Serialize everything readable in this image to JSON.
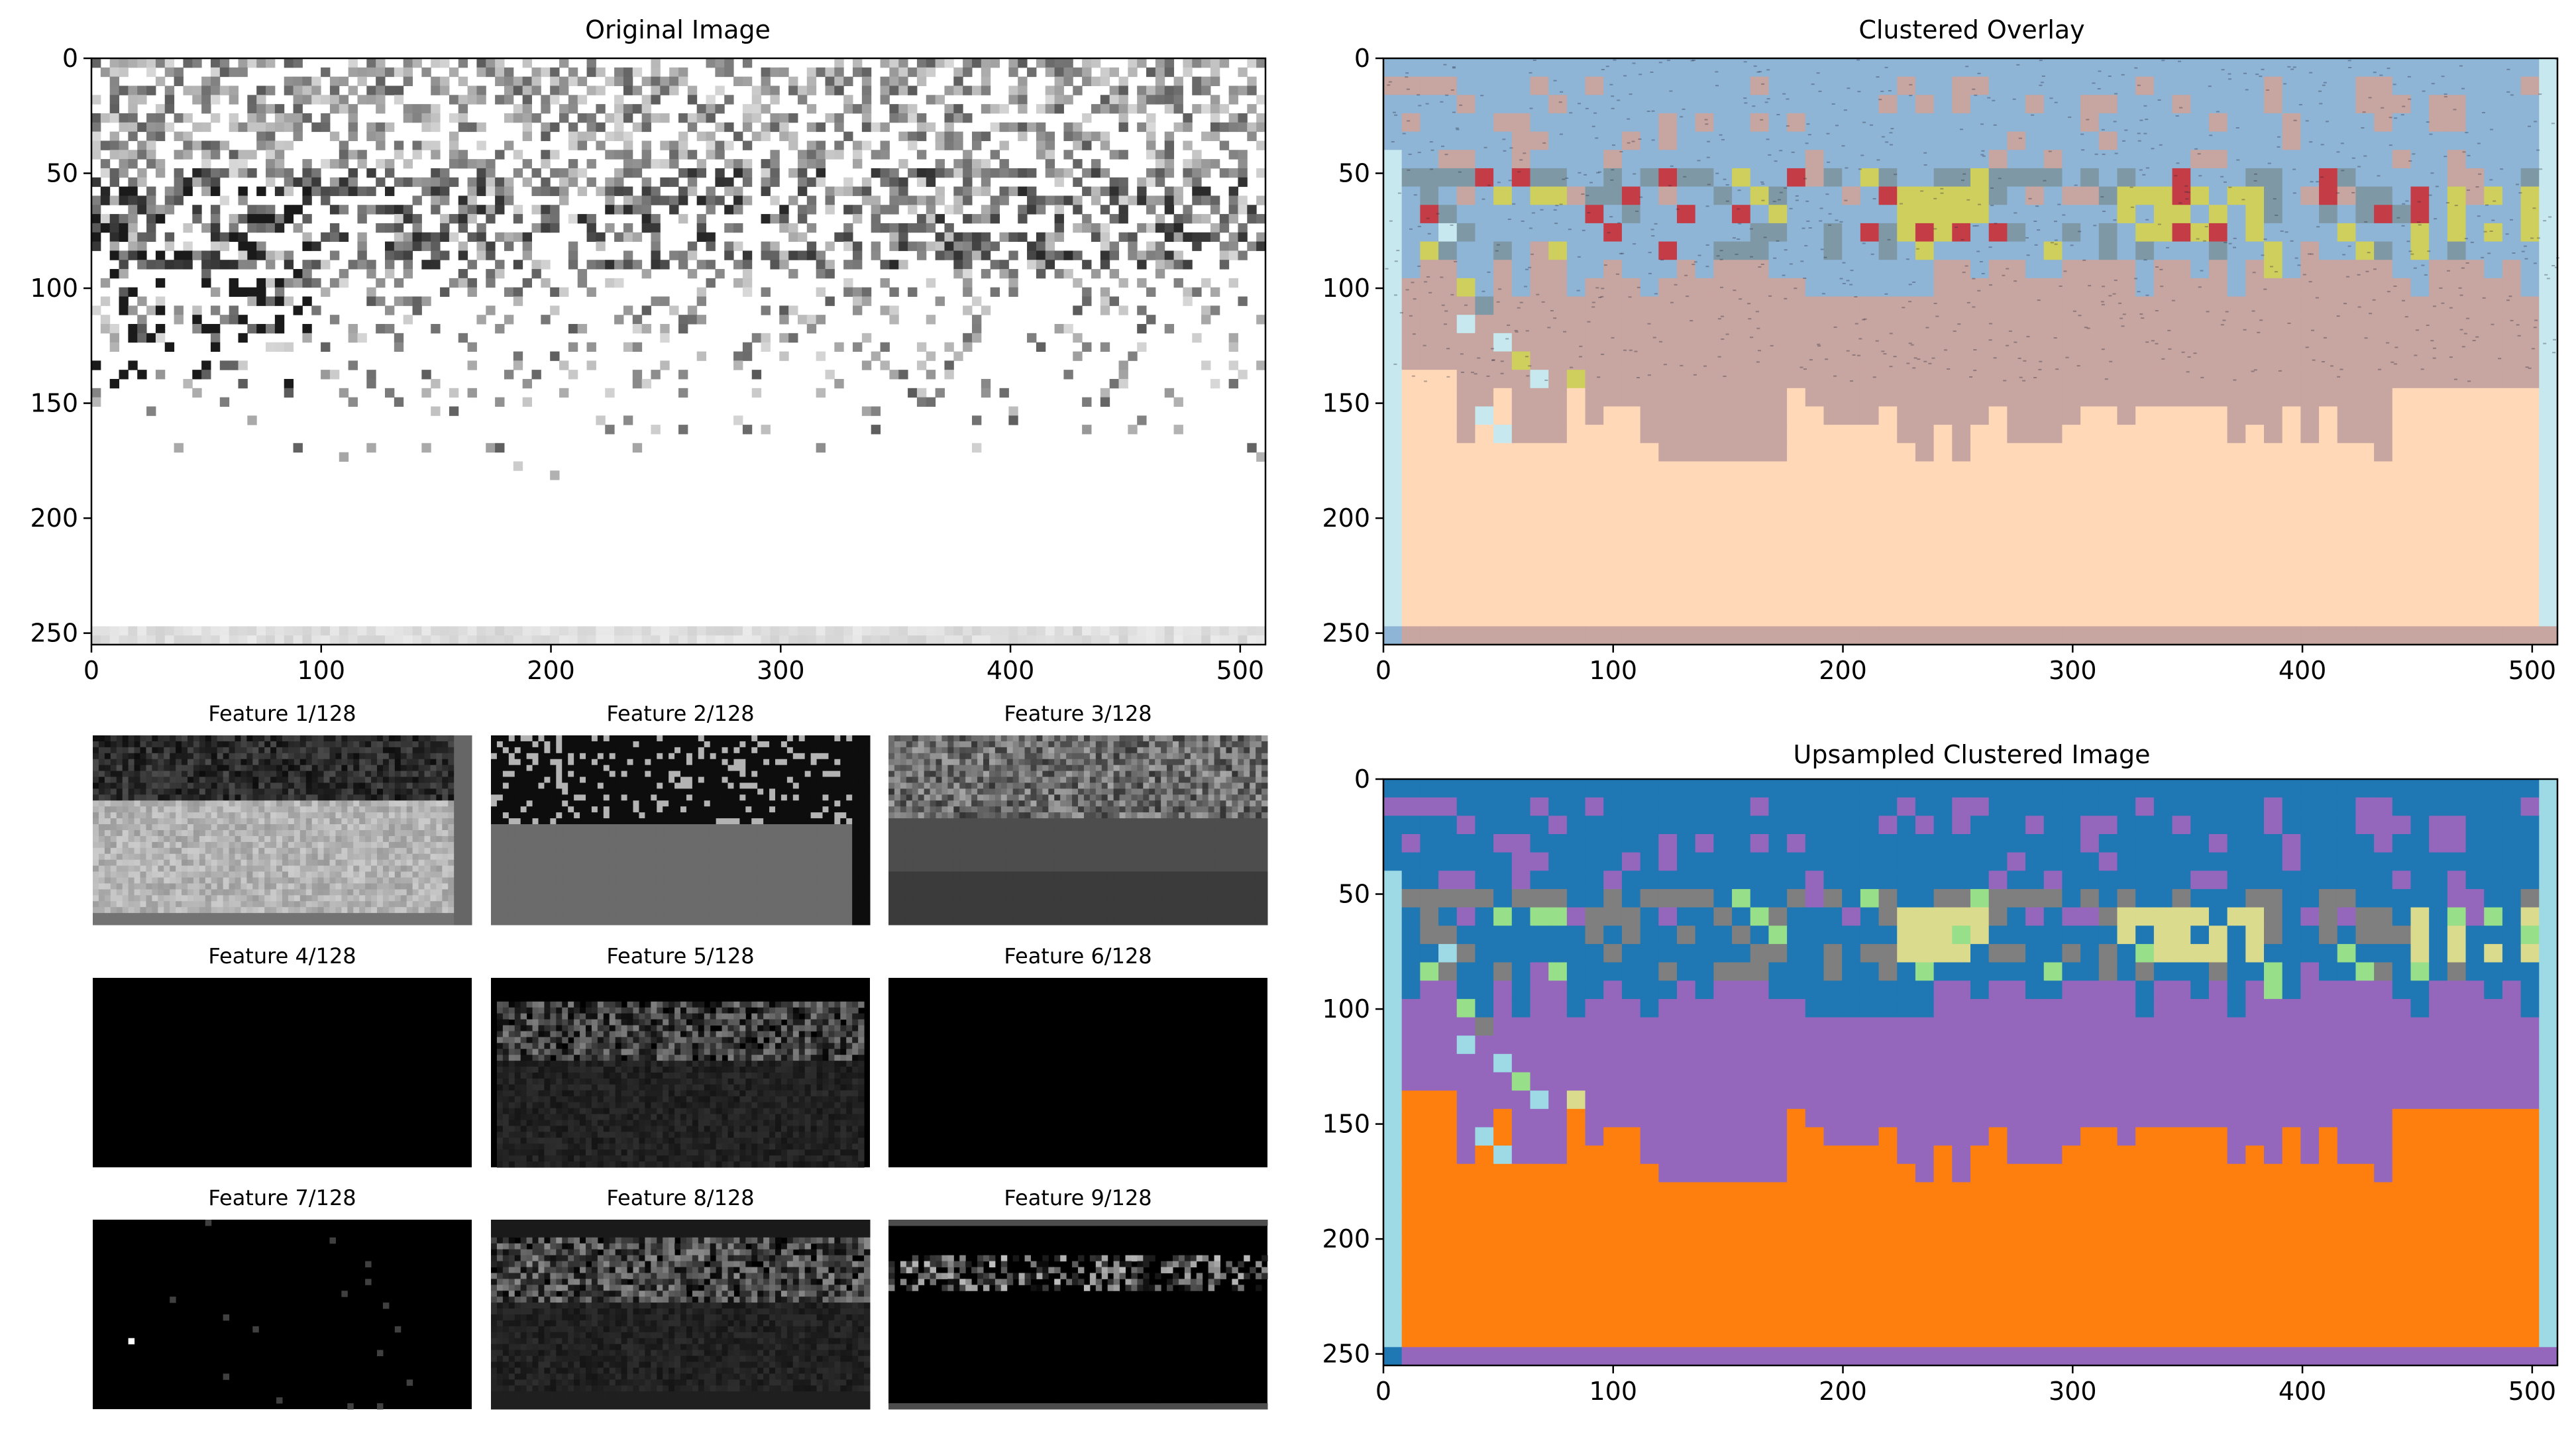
{
  "chart_data": [
    {
      "id": "original",
      "type": "heatmap",
      "title": "Original Image",
      "xlim": [
        0,
        511
      ],
      "ylim": [
        255,
        0
      ],
      "xticks": [
        0,
        100,
        200,
        300,
        400,
        500
      ],
      "yticks": [
        0,
        50,
        100,
        150,
        200,
        250
      ],
      "colormap": "gray_r"
    },
    {
      "id": "overlay",
      "type": "heatmap",
      "title": "Clustered Overlay",
      "xlim": [
        0,
        511
      ],
      "ylim": [
        255,
        0
      ],
      "xticks": [
        0,
        100,
        200,
        300,
        400,
        500
      ],
      "yticks": [
        0,
        50,
        100,
        150,
        200,
        250
      ],
      "overlay_alpha": 0.5
    },
    {
      "id": "upsampled",
      "type": "heatmap",
      "title": "Upsampled Clustered Image",
      "xlim": [
        0,
        511
      ],
      "ylim": [
        255,
        0
      ],
      "xticks": [
        0,
        100,
        200,
        300,
        400,
        500
      ],
      "yticks": [
        0,
        50,
        100,
        150,
        200,
        250
      ],
      "grid_cells": [
        64,
        32
      ]
    },
    {
      "id": "features",
      "type": "heatmap",
      "colormap": "gray",
      "panels": [
        {
          "title": "Feature 1/128"
        },
        {
          "title": "Feature 2/128"
        },
        {
          "title": "Feature 3/128"
        },
        {
          "title": "Feature 4/128"
        },
        {
          "title": "Feature 5/128"
        },
        {
          "title": "Feature 6/128"
        },
        {
          "title": "Feature 7/128"
        },
        {
          "title": "Feature 8/128"
        },
        {
          "title": "Feature 9/128"
        }
      ]
    }
  ],
  "cluster_colors": {
    "blue": "#1f77b4",
    "purple": "#9467bd",
    "orange": "#ff7f0e",
    "gray": "#7f7f7f",
    "light_blue": "#9edae5",
    "khaki": "#dbdb8d",
    "light_green": "#98df8a",
    "red": "#d62728"
  },
  "overlay_colors": {
    "blue": "#8eb4d6",
    "mauve": "#c7a5a0",
    "peach": "#ffd8b8",
    "yellow": "#cfcf5e",
    "red": "#c43c45",
    "light_blue": "#c7e8ee",
    "slate": "#7e98a6"
  }
}
